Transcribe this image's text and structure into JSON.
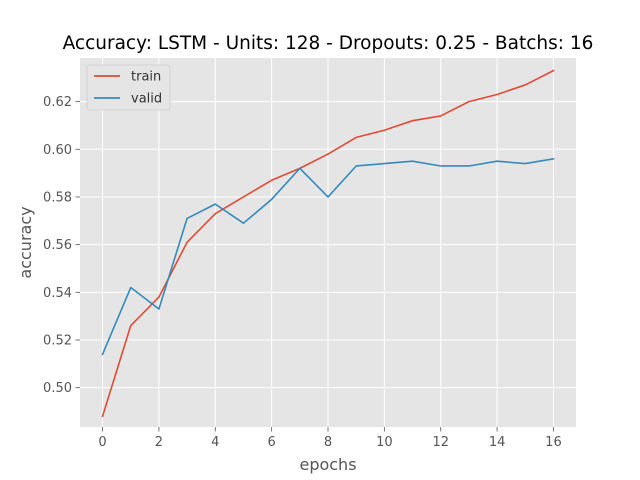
{
  "chart_data": {
    "type": "line",
    "title": "Accuracy: LSTM - Units: 128 - Dropouts: 0.25 - Batchs: 16",
    "xlabel": "epochs",
    "ylabel": "accuracy",
    "x": [
      0,
      1,
      2,
      3,
      4,
      5,
      6,
      7,
      8,
      9,
      10,
      11,
      12,
      13,
      14,
      15,
      16
    ],
    "xlim": [
      -0.8,
      16.8
    ],
    "ylim": [
      0.4835,
      0.6383
    ],
    "xticks": [
      0,
      2,
      4,
      6,
      8,
      10,
      12,
      14,
      16
    ],
    "yticks": [
      0.5,
      0.52,
      0.54,
      0.56,
      0.58,
      0.6,
      0.62
    ],
    "xtick_labels": [
      "0",
      "2",
      "4",
      "6",
      "8",
      "10",
      "12",
      "14",
      "16"
    ],
    "ytick_labels": [
      "0.50",
      "0.52",
      "0.54",
      "0.56",
      "0.58",
      "0.60",
      "0.62"
    ],
    "grid": true,
    "legend_position": "top-left",
    "series": [
      {
        "name": "train",
        "color": "#E24A33",
        "values": [
          0.488,
          0.526,
          0.538,
          0.561,
          0.573,
          0.58,
          0.587,
          0.592,
          0.598,
          0.605,
          0.608,
          0.612,
          0.614,
          0.62,
          0.623,
          0.627,
          0.633
        ]
      },
      {
        "name": "valid",
        "color": "#348ABD",
        "values": [
          0.514,
          0.542,
          0.533,
          0.571,
          0.577,
          0.569,
          0.579,
          0.592,
          0.58,
          0.593,
          0.594,
          0.595,
          0.593,
          0.593,
          0.595,
          0.594,
          0.596
        ]
      }
    ]
  }
}
